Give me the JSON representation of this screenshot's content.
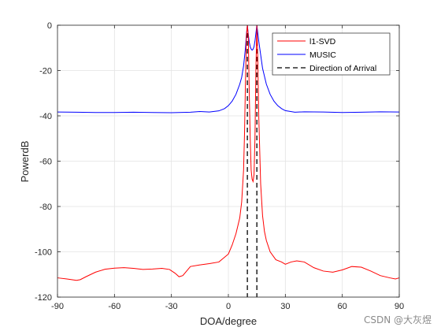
{
  "chart_data": {
    "type": "line",
    "xlabel": "DOA/degree",
    "ylabel": "PowerdB",
    "xlim": [
      -90,
      90
    ],
    "ylim": [
      -120,
      0
    ],
    "xticks": [
      -90,
      -60,
      -30,
      0,
      30,
      60,
      90
    ],
    "yticks": [
      0,
      -20,
      -40,
      -60,
      -80,
      -100,
      -120
    ],
    "grid": true,
    "legend_position": "top-right",
    "series": [
      {
        "name": "l1-SVD",
        "color": "#ff0000",
        "x": [
          -90,
          -85,
          -80,
          -78,
          -75,
          -70,
          -65,
          -60,
          -55,
          -50,
          -45,
          -40,
          -35,
          -31,
          -28,
          -26,
          -24,
          -20,
          -15,
          -10,
          -5,
          0,
          2,
          4,
          6,
          7,
          8,
          8.5,
          9,
          9.5,
          10,
          10.5,
          11,
          11.5,
          12,
          12.5,
          13,
          13.5,
          14,
          14.5,
          15,
          15.5,
          16,
          17,
          18,
          19,
          20,
          22,
          25,
          28,
          30,
          33,
          36,
          40,
          45,
          50,
          55,
          60,
          65,
          70,
          75,
          80,
          85,
          88,
          90
        ],
        "y": [
          -111.5,
          -112,
          -112.6,
          -112.3,
          -111,
          -109,
          -107.7,
          -107.2,
          -107,
          -107.3,
          -107.8,
          -107.6,
          -107.3,
          -107.8,
          -109.5,
          -111,
          -110.5,
          -106.5,
          -105.8,
          -105.2,
          -104.5,
          -101,
          -97,
          -92,
          -85,
          -78,
          -64,
          -48,
          -25,
          -5,
          0,
          -5,
          -30,
          -50,
          -64,
          -68,
          -69,
          -66,
          -50,
          -20,
          0,
          -15,
          -40,
          -70,
          -84,
          -91,
          -95,
          -100,
          -103.5,
          -104.5,
          -105.5,
          -104.5,
          -104,
          -104.5,
          -107,
          -108.5,
          -109,
          -108,
          -106.5,
          -106.8,
          -108.5,
          -110.5,
          -111.5,
          -112,
          -111.5
        ]
      },
      {
        "name": "MUSIC",
        "color": "#0000ff",
        "x": [
          -90,
          -80,
          -70,
          -60,
          -50,
          -40,
          -30,
          -20,
          -15,
          -10,
          -5,
          -2,
          0,
          2,
          4,
          6,
          7,
          8,
          9,
          9.5,
          10,
          10.5,
          11,
          11.5,
          12,
          12.5,
          13,
          13.5,
          14,
          14.5,
          15,
          15.5,
          16,
          17,
          18,
          20,
          22,
          24,
          26,
          28,
          30,
          35,
          40,
          50,
          60,
          70,
          80,
          90
        ],
        "y": [
          -38.3,
          -38.4,
          -38.5,
          -38.5,
          -38.4,
          -38.5,
          -38.6,
          -38.4,
          -38.1,
          -38.3,
          -37.8,
          -36.8,
          -35.5,
          -33.5,
          -30.5,
          -26,
          -23,
          -18,
          -10,
          -4,
          0,
          -4,
          -7.5,
          -9.5,
          -10.5,
          -11,
          -10.6,
          -9.5,
          -7,
          -3.5,
          0,
          -3.5,
          -7,
          -13,
          -19,
          -26,
          -30.5,
          -33.5,
          -35.5,
          -36.8,
          -37.7,
          -38.4,
          -38.2,
          -38.3,
          -38.5,
          -38.4,
          -38.2,
          -38.3
        ]
      },
      {
        "name": "Direction of Arrival",
        "color": "#000000",
        "style": "dashed",
        "vertical_lines_x": [
          10,
          15
        ]
      }
    ]
  },
  "watermark": "CSDN @大灰煜"
}
